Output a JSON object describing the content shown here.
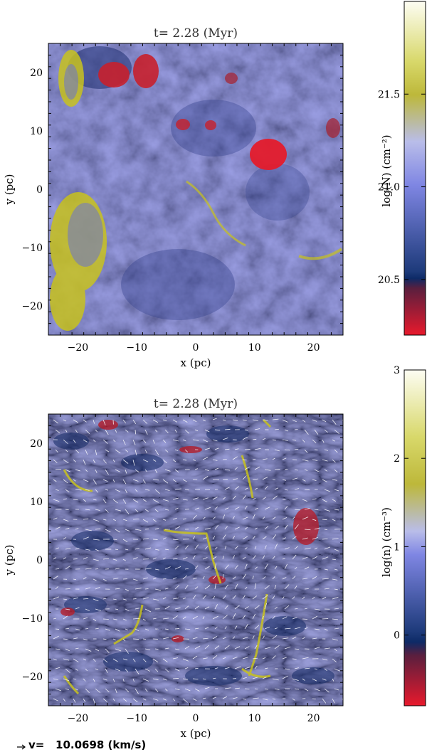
{
  "chart_data": [
    {
      "type": "heatmap",
      "title": "t= 2.28 (Myr)",
      "xlabel": "x (pc)",
      "ylabel": "y (pc)",
      "xlim": [
        -25,
        25
      ],
      "ylim": [
        -25,
        25
      ],
      "xticks": [
        -20,
        -10,
        0,
        10,
        20
      ],
      "yticks": [
        -20,
        -10,
        0,
        10,
        20
      ],
      "colorbar": {
        "label": "log(N) (cm⁻²)",
        "range": [
          20.2,
          22.0
        ],
        "ticks": [
          "20.5",
          "21.0",
          "21.5"
        ],
        "tick_values": [
          20.5,
          21.0,
          21.5
        ]
      }
    },
    {
      "type": "heatmap",
      "title": "t= 2.28 (Myr)",
      "xlabel": "x (pc)",
      "ylabel": "y (pc)",
      "xlim": [
        -25,
        25
      ],
      "ylim": [
        -25,
        25
      ],
      "xticks": [
        -20,
        -10,
        0,
        10,
        20
      ],
      "yticks": [
        -20,
        -10,
        0,
        10,
        20
      ],
      "vector_field": true,
      "colorbar": {
        "label": "log(n) (cm⁻³)",
        "range": [
          -0.8,
          3.0
        ],
        "ticks": [
          "0",
          "1",
          "2",
          "3"
        ],
        "tick_values": [
          0,
          1,
          2,
          3
        ]
      }
    }
  ],
  "velocity_legend": "v=   10.0698 (km/s)",
  "colors": {
    "low": "#e8192c",
    "dark": "#0d2a66",
    "mid": "#7f86e3",
    "light": "#b9bde9",
    "high": "#c8c21e",
    "top": "#fdfdf3"
  }
}
